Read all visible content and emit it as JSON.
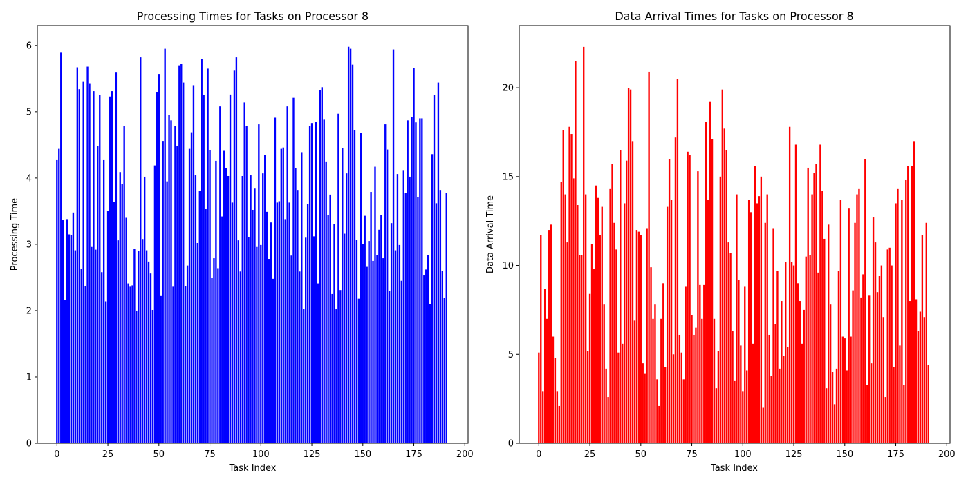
{
  "chart_data": [
    {
      "type": "bar",
      "title": "Processing Times for Tasks on Processor 8",
      "xlabel": "Task Index",
      "ylabel": "Processing Time",
      "color": "#0000ff",
      "xlim": [
        -9.6,
        201.6
      ],
      "ylim": [
        0,
        6.3
      ],
      "xticks": [
        0,
        25,
        50,
        75,
        100,
        125,
        150,
        175,
        200
      ],
      "yticks": [
        0,
        1,
        2,
        3,
        4,
        5,
        6
      ],
      "grid": false,
      "x": [
        0,
        1,
        2,
        3,
        4,
        5,
        6,
        7,
        8,
        9,
        10,
        11,
        12,
        13,
        14,
        15,
        16,
        17,
        18,
        19,
        20,
        21,
        22,
        23,
        24,
        25,
        26,
        27,
        28,
        29,
        30,
        31,
        32,
        33,
        34,
        35,
        36,
        37,
        38,
        39,
        40,
        41,
        42,
        43,
        44,
        45,
        46,
        47,
        48,
        49,
        50,
        51,
        52,
        53,
        54,
        55,
        56,
        57,
        58,
        59,
        60,
        61,
        62,
        63,
        64,
        65,
        66,
        67,
        68,
        69,
        70,
        71,
        72,
        73,
        74,
        75,
        76,
        77,
        78,
        79,
        80,
        81,
        82,
        83,
        84,
        85,
        86,
        87,
        88,
        89,
        90,
        91,
        92,
        93,
        94,
        95,
        96,
        97,
        98,
        99,
        100,
        101,
        102,
        103,
        104,
        105,
        106,
        107,
        108,
        109,
        110,
        111,
        112,
        113,
        114,
        115,
        116,
        117,
        118,
        119,
        120,
        121,
        122,
        123,
        124,
        125,
        126,
        127,
        128,
        129,
        130,
        131,
        132,
        133,
        134,
        135,
        136,
        137,
        138,
        139,
        140,
        141,
        142,
        143,
        144,
        145,
        146,
        147,
        148,
        149,
        150,
        151,
        152,
        153,
        154,
        155,
        156,
        157,
        158,
        159,
        160,
        161,
        162,
        163,
        164,
        165,
        166,
        167,
        168,
        169,
        170,
        171,
        172,
        173,
        174,
        175,
        176,
        177,
        178,
        179,
        180,
        181,
        182,
        183,
        184,
        185,
        186,
        187,
        188,
        189,
        190,
        191
      ],
      "values": [
        4.27,
        4.44,
        5.89,
        3.37,
        2.16,
        3.38,
        3.15,
        3.14,
        3.48,
        2.91,
        5.67,
        5.34,
        2.63,
        5.45,
        2.37,
        5.68,
        5.43,
        2.96,
        5.31,
        2.92,
        4.48,
        5.25,
        2.58,
        4.27,
        2.14,
        3.5,
        5.23,
        5.31,
        3.64,
        5.59,
        3.06,
        4.09,
        3.91,
        4.79,
        3.4,
        2.41,
        2.36,
        2.38,
        2.93,
        2.0,
        2.9,
        5.82,
        3.08,
        4.02,
        2.91,
        2.74,
        2.56,
        2.01,
        4.19,
        5.3,
        5.57,
        2.22,
        4.56,
        5.95,
        3.95,
        4.95,
        4.87,
        2.36,
        4.78,
        4.48,
        5.7,
        5.72,
        5.44,
        2.37,
        2.68,
        4.44,
        4.69,
        5.4,
        4.04,
        3.02,
        3.81,
        5.79,
        5.25,
        3.53,
        5.65,
        4.42,
        2.49,
        2.79,
        4.26,
        2.64,
        5.08,
        3.42,
        4.41,
        4.15,
        4.03,
        5.26,
        3.63,
        5.62,
        5.82,
        3.06,
        2.59,
        4.03,
        5.14,
        4.79,
        3.11,
        4.04,
        3.52,
        3.84,
        2.96,
        4.81,
        2.99,
        4.07,
        4.35,
        3.49,
        2.78,
        3.33,
        2.48,
        4.91,
        3.63,
        3.65,
        4.44,
        4.46,
        3.38,
        5.08,
        3.63,
        2.83,
        5.21,
        4.15,
        3.82,
        2.59,
        4.39,
        2.02,
        3.1,
        3.61,
        4.79,
        4.83,
        3.12,
        4.85,
        2.41,
        5.33,
        5.37,
        4.88,
        4.25,
        3.44,
        3.75,
        2.25,
        3.31,
        2.02,
        4.97,
        2.31,
        4.45,
        3.16,
        4.07,
        5.98,
        5.95,
        5.71,
        4.72,
        3.07,
        2.18,
        4.68,
        3.0,
        3.43,
        2.66,
        3.05,
        3.79,
        2.75,
        4.17,
        2.84,
        3.22,
        3.44,
        2.79,
        4.81,
        4.43,
        2.3,
        3.32,
        5.94,
        2.91,
        4.06,
        2.99,
        2.45,
        4.12,
        3.77,
        4.87,
        4.02,
        4.92,
        5.66,
        4.84,
        3.71,
        4.9,
        4.9,
        2.53,
        2.62,
        2.84,
        2.1,
        4.36,
        5.25,
        3.62,
        5.44,
        3.82,
        2.6,
        2.19,
        3.77
      ]
    },
    {
      "type": "bar",
      "title": "Data Arrival Times for Tasks on Processor 8",
      "xlabel": "Task Index",
      "ylabel": "Data Arrival Time",
      "color": "#ff0000",
      "xlim": [
        -9.6,
        201.6
      ],
      "ylim": [
        0,
        23.5
      ],
      "xticks": [
        0,
        25,
        50,
        75,
        100,
        125,
        150,
        175,
        200
      ],
      "yticks": [
        0,
        5,
        10,
        15,
        20
      ],
      "grid": false,
      "x": [
        0,
        1,
        2,
        3,
        4,
        5,
        6,
        7,
        8,
        9,
        10,
        11,
        12,
        13,
        14,
        15,
        16,
        17,
        18,
        19,
        20,
        21,
        22,
        23,
        24,
        25,
        26,
        27,
        28,
        29,
        30,
        31,
        32,
        33,
        34,
        35,
        36,
        37,
        38,
        39,
        40,
        41,
        42,
        43,
        44,
        45,
        46,
        47,
        48,
        49,
        50,
        51,
        52,
        53,
        54,
        55,
        56,
        57,
        58,
        59,
        60,
        61,
        62,
        63,
        64,
        65,
        66,
        67,
        68,
        69,
        70,
        71,
        72,
        73,
        74,
        75,
        76,
        77,
        78,
        79,
        80,
        81,
        82,
        83,
        84,
        85,
        86,
        87,
        88,
        89,
        90,
        91,
        92,
        93,
        94,
        95,
        96,
        97,
        98,
        99,
        100,
        101,
        102,
        103,
        104,
        105,
        106,
        107,
        108,
        109,
        110,
        111,
        112,
        113,
        114,
        115,
        116,
        117,
        118,
        119,
        120,
        121,
        122,
        123,
        124,
        125,
        126,
        127,
        128,
        129,
        130,
        131,
        132,
        133,
        134,
        135,
        136,
        137,
        138,
        139,
        140,
        141,
        142,
        143,
        144,
        145,
        146,
        147,
        148,
        149,
        150,
        151,
        152,
        153,
        154,
        155,
        156,
        157,
        158,
        159,
        160,
        161,
        162,
        163,
        164,
        165,
        166,
        167,
        168,
        169,
        170,
        171,
        172,
        173,
        174,
        175,
        176,
        177,
        178,
        179,
        180,
        181,
        182,
        183,
        184,
        185,
        186,
        187,
        188,
        189,
        190,
        191
      ],
      "values": [
        5.1,
        11.7,
        2.9,
        8.7,
        7.0,
        12.0,
        12.3,
        6.0,
        4.8,
        2.9,
        2.1,
        14.7,
        17.6,
        14.0,
        11.3,
        17.8,
        17.4,
        14.9,
        21.5,
        13.4,
        10.6,
        10.6,
        22.3,
        14.0,
        5.2,
        8.4,
        11.2,
        9.8,
        14.5,
        13.8,
        11.7,
        13.3,
        7.8,
        4.2,
        2.6,
        14.3,
        15.7,
        12.4,
        10.9,
        5.1,
        16.5,
        5.6,
        13.5,
        15.9,
        20.0,
        19.9,
        17.0,
        6.9,
        12.0,
        11.9,
        11.7,
        4.5,
        3.9,
        12.1,
        20.9,
        9.9,
        7.0,
        7.8,
        3.6,
        2.1,
        7.0,
        9.0,
        4.3,
        13.3,
        16.0,
        13.7,
        5.0,
        17.2,
        20.5,
        6.1,
        5.1,
        3.6,
        8.8,
        16.4,
        16.2,
        7.2,
        6.1,
        6.5,
        15.3,
        8.9,
        7.0,
        8.9,
        18.1,
        13.7,
        19.2,
        17.1,
        7.0,
        3.1,
        5.2,
        15.0,
        19.9,
        17.7,
        16.5,
        11.3,
        10.7,
        6.3,
        3.5,
        14.0,
        9.2,
        5.5,
        2.9,
        8.8,
        4.1,
        13.7,
        13.0,
        5.6,
        15.6,
        13.5,
        13.9,
        15.0,
        2.0,
        12.4,
        14.0,
        6.1,
        3.8,
        12.1,
        6.7,
        9.7,
        4.2,
        8.0,
        4.9,
        10.2,
        5.4,
        17.8,
        10.2,
        10.0,
        16.8,
        9.0,
        8.0,
        5.6,
        7.5,
        10.5,
        15.5,
        10.6,
        14.0,
        15.2,
        15.7,
        9.6,
        16.8,
        14.2,
        11.5,
        3.1,
        12.3,
        7.8,
        4.0,
        2.2,
        4.2,
        9.7,
        13.7,
        6.0,
        5.9,
        4.1,
        13.2,
        6.0,
        8.6,
        12.4,
        14.0,
        14.3,
        8.2,
        9.5,
        16.0,
        3.3,
        8.3,
        4.5,
        12.7,
        11.3,
        8.5,
        9.4,
        10.0,
        7.1,
        2.6,
        10.9,
        11.0,
        10.0,
        4.3,
        13.5,
        14.3,
        5.5,
        13.7,
        3.3,
        14.8,
        15.6,
        8.0,
        15.6,
        17.0,
        8.1,
        6.3,
        7.4,
        11.7,
        7.1,
        12.4,
        4.4
      ]
    }
  ]
}
